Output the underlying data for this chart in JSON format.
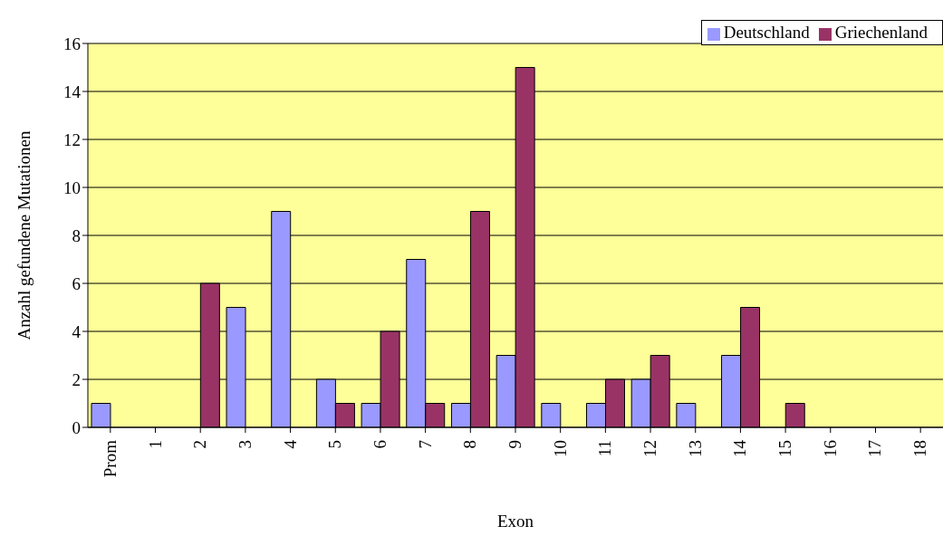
{
  "chart_data": {
    "type": "bar",
    "xlabel": "Exon",
    "ylabel": "Anzahl gefundene Mutationen",
    "categories": [
      "Prom",
      "1",
      "2",
      "3",
      "4",
      "5",
      "6",
      "7",
      "8",
      "9",
      "10",
      "11",
      "12",
      "13",
      "14",
      "15",
      "16",
      "17",
      "18"
    ],
    "series": [
      {
        "name": "Deutschland",
        "color": "#9999ff",
        "values": [
          1,
          0,
          0,
          5,
          9,
          2,
          1,
          7,
          1,
          3,
          1,
          1,
          2,
          1,
          3,
          0,
          0,
          0,
          0
        ]
      },
      {
        "name": "Griechenland",
        "color": "#993366",
        "values": [
          0,
          0,
          6,
          0,
          0,
          1,
          4,
          1,
          9,
          15,
          0,
          2,
          3,
          0,
          5,
          1,
          0,
          0,
          0
        ]
      }
    ],
    "ylim": [
      0,
      16
    ],
    "yticks": [
      0,
      2,
      4,
      6,
      8,
      10,
      12,
      14,
      16
    ],
    "grid": "y",
    "legend": "top right"
  }
}
